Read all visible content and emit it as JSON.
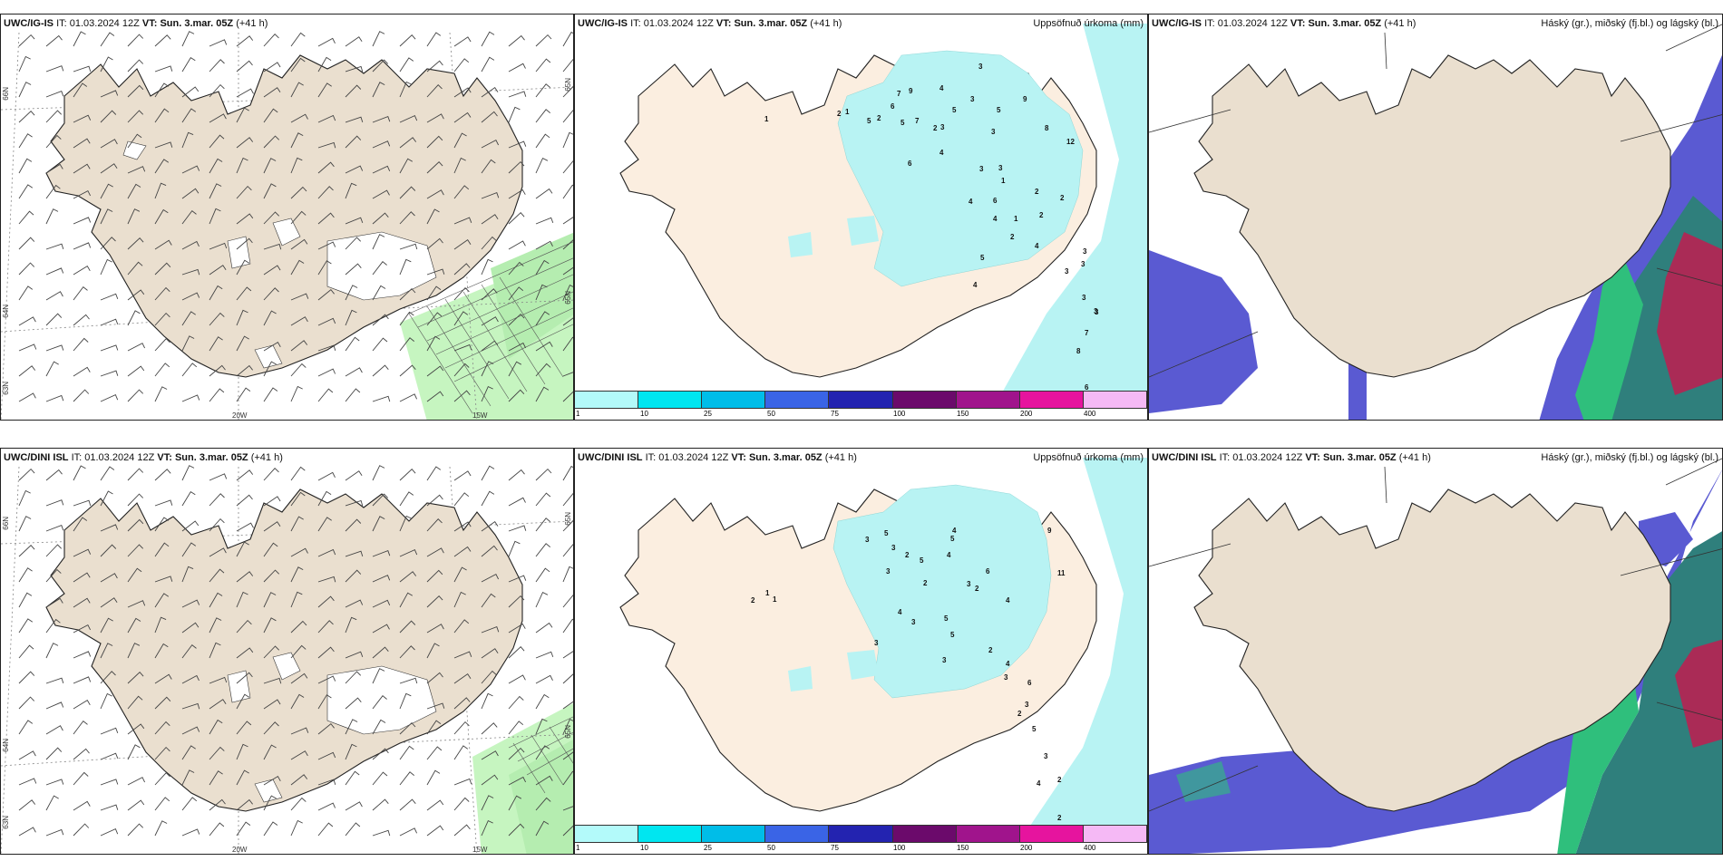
{
  "rows": [
    {
      "model": "UWC/IG-IS",
      "it_label": "IT:",
      "it_value": "01.03.2024 12Z",
      "vt_label": "VT:",
      "vt_value": "Sun. 3.mar. 05Z",
      "lead": "(+41 h)"
    },
    {
      "model": "UWC/DINI ISL",
      "it_label": "IT:",
      "it_value": "01.03.2024 12Z",
      "vt_label": "VT:",
      "vt_value": "Sun. 3.mar. 05Z",
      "lead": "(+41 h)"
    }
  ],
  "precip_title": "Uppsöfnuð úrkoma (mm)",
  "cloud_title": "Háský (gr.), miðský (fj.bl.) og lágský (bl.)",
  "lon_labels": [
    "20W",
    "15W"
  ],
  "lat_labels": [
    "66N",
    "64N",
    "65N",
    "65N",
    "63N"
  ],
  "colorbar": {
    "ticks": [
      "1",
      "10",
      "25",
      "50",
      "75",
      "100",
      "150",
      "200",
      "400"
    ],
    "colors": [
      "#b3fafa",
      "#00e6f0",
      "#00bde8",
      "#3a64e6",
      "#2323b0",
      "#6b0a6b",
      "#a0148c",
      "#e6149e",
      "#f5b9f5"
    ]
  },
  "colors": {
    "land": "#eadfcf",
    "snow": "#ffffff",
    "precip_light": "#b8f3f3",
    "sea_green": "#c6f5c0",
    "cloud_high": "#5a5ad2",
    "cloud_mid": "#2fbf7c",
    "cloud_low": "#c01c50"
  },
  "precip_values_top": [
    "3",
    "1",
    "7",
    "9",
    "4",
    "3",
    "6",
    "5",
    "5",
    "9",
    "2",
    "3",
    "5",
    "3",
    "8",
    "1",
    "2",
    "2",
    "5",
    "7",
    "4",
    "12",
    "6",
    "3",
    "3",
    "1",
    "2",
    "6",
    "2",
    "4",
    "1",
    "2",
    "4",
    "4",
    "2",
    "3",
    "3",
    "3",
    "5",
    "4",
    "3",
    "3",
    "7",
    "3",
    "8",
    "6"
  ],
  "precip_values_bottom": [
    "1",
    "2",
    "3",
    "5",
    "3",
    "2",
    "4",
    "5",
    "4",
    "9",
    "3",
    "5",
    "6",
    "11",
    "3",
    "2",
    "2",
    "4",
    "3",
    "1",
    "4",
    "5",
    "3",
    "5",
    "3",
    "2",
    "4",
    "3",
    "3",
    "6",
    "2",
    "5",
    "3",
    "4",
    "2",
    "2"
  ]
}
